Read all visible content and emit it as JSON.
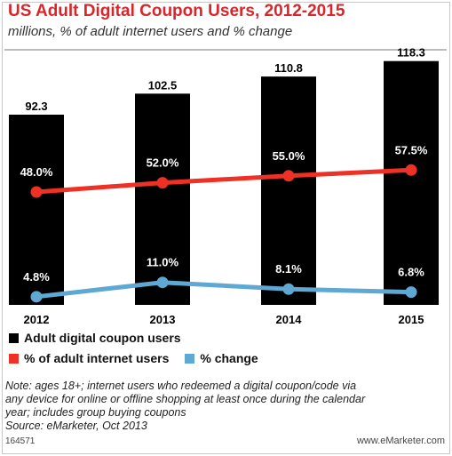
{
  "header": {
    "title": "US Adult Digital Coupon Users, 2012-2015",
    "subtitle": "millions, % of adult internet users and % change"
  },
  "colors": {
    "title": "#d8262b",
    "bars": "#000000",
    "pct_internet_users": "#ee3124",
    "pct_change": "#5fa8d3"
  },
  "chart_data": {
    "type": "bar",
    "categories": [
      "2012",
      "2013",
      "2014",
      "2015"
    ],
    "series": [
      {
        "name": "Adult digital coupon users",
        "type": "bar",
        "values": [
          92.3,
          102.5,
          110.8,
          118.3
        ],
        "labels": [
          "92.3",
          "102.5",
          "110.8",
          "118.3"
        ]
      },
      {
        "name": "% of adult internet users",
        "type": "line",
        "values": [
          48.0,
          52.0,
          55.0,
          57.5
        ],
        "labels": [
          "48.0%",
          "52.0%",
          "55.0%",
          "57.5%"
        ]
      },
      {
        "name": "% change",
        "type": "line",
        "values": [
          4.8,
          11.0,
          8.1,
          6.8
        ],
        "labels": [
          "4.8%",
          "11.0%",
          "8.1%",
          "6.8%"
        ]
      }
    ],
    "legend_position": "bottom",
    "grid": false
  },
  "note": {
    "lines": [
      "Note: ages 18+; internet users who redeemed a digital coupon/code via",
      "any device for online or offline shopping at least once during the calendar",
      "year; includes group buying coupons",
      "Source: eMarketer, Oct 2013"
    ]
  },
  "footer": {
    "id": "164571",
    "brand": "www.eMarketer.com"
  }
}
